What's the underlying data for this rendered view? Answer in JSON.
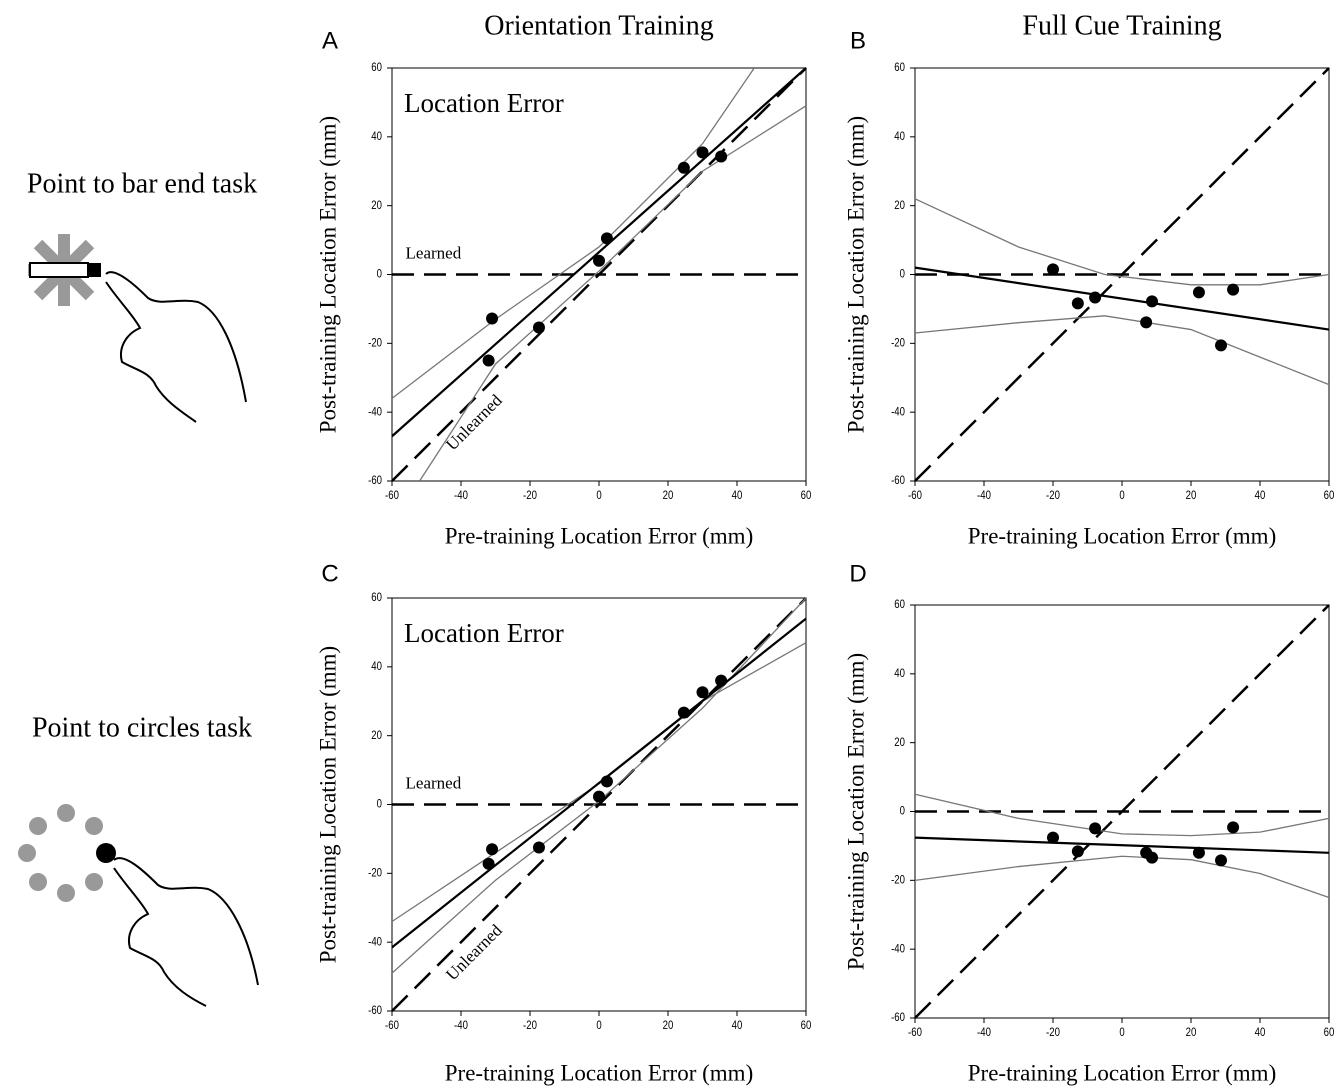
{
  "row_labels": [
    "Point to bar end task",
    "Point to circles task"
  ],
  "chart_data": [
    {
      "type": "scatter",
      "panel": "A",
      "title": "Orientation Training",
      "annotation": "Location Error",
      "xlabel": "Pre-training Location Error (mm)",
      "ylabel": "Post-training Location Error (mm)",
      "xlim": [
        -60,
        60
      ],
      "ylim": [
        -60,
        60
      ],
      "xticks": [
        -60,
        -40,
        -20,
        0,
        20,
        40,
        60
      ],
      "yticks": [
        -60,
        -40,
        -20,
        0,
        20,
        40,
        60
      ],
      "color": "#000000",
      "band_color": "#777777",
      "x": [
        -31,
        -32,
        -17.4,
        0,
        2.3,
        24.6,
        30,
        35.4
      ],
      "y": [
        -12.8,
        -25,
        -15.4,
        4,
        10.5,
        31,
        35.5,
        34.3
      ],
      "fit": {
        "x": [
          -60,
          60
        ],
        "y": [
          -47,
          60
        ]
      },
      "bands": [
        {
          "x": [
            -60,
            -30,
            0,
            30,
            45
          ],
          "y": [
            -36,
            -13,
            8,
            38,
            60
          ]
        },
        {
          "x": [
            -52,
            -30,
            0,
            30,
            60
          ],
          "y": [
            -60,
            -26,
            1,
            30,
            49
          ]
        }
      ],
      "reference_lines": [
        {
          "label": "Learned",
          "x": [
            -60,
            60
          ],
          "y": [
            0,
            0
          ]
        },
        {
          "label": "Unlearned",
          "x": [
            -60,
            60
          ],
          "y": [
            -60,
            60
          ]
        }
      ]
    },
    {
      "type": "scatter",
      "panel": "B",
      "title": "Full Cue Training",
      "xlabel": "Pre-training Location Error (mm)",
      "ylabel": "Post-training Location Error (mm)",
      "xlim": [
        -60,
        60
      ],
      "ylim": [
        -60,
        60
      ],
      "xticks": [
        -60,
        -40,
        -20,
        0,
        20,
        40,
        60
      ],
      "yticks": [
        -60,
        -40,
        -20,
        0,
        20,
        40,
        60
      ],
      "color": "#000000",
      "band_color": "#777777",
      "x": [
        -20,
        -12.8,
        -7.8,
        7,
        8.7,
        22.3,
        32.2,
        28.7
      ],
      "y": [
        1.5,
        -8.4,
        -6.7,
        -13.9,
        -7.8,
        -5.2,
        -4.4,
        -20.6
      ],
      "fit": {
        "x": [
          -60,
          60
        ],
        "y": [
          2,
          -16
        ]
      },
      "bands": [
        {
          "x": [
            -60,
            -30,
            -5,
            20,
            40,
            60
          ],
          "y": [
            22,
            8,
            0,
            -3,
            -3,
            0
          ]
        },
        {
          "x": [
            -60,
            -30,
            -5,
            20,
            40,
            60
          ],
          "y": [
            -17,
            -14,
            -12,
            -16,
            -24,
            -32
          ]
        }
      ],
      "reference_lines": [
        {
          "x": [
            -60,
            60
          ],
          "y": [
            0,
            0
          ]
        },
        {
          "x": [
            -60,
            60
          ],
          "y": [
            -60,
            60
          ]
        }
      ]
    },
    {
      "type": "scatter",
      "panel": "C",
      "annotation": "Location Error",
      "xlabel": "Pre-training Location Error (mm)",
      "ylabel": "Post-training Location Error (mm)",
      "xlim": [
        -60,
        60
      ],
      "ylim": [
        -60,
        60
      ],
      "xticks": [
        -60,
        -40,
        -20,
        0,
        20,
        40,
        60
      ],
      "yticks": [
        -60,
        -40,
        -20,
        0,
        20,
        40,
        60
      ],
      "color": "#000000",
      "band_color": "#777777",
      "x": [
        -31,
        -32,
        -17.4,
        0,
        2.3,
        24.6,
        30,
        35.4
      ],
      "y": [
        -13,
        -17.2,
        -12.5,
        2.3,
        6.7,
        26.7,
        32.6,
        36
      ],
      "fit": {
        "x": [
          -60,
          60
        ],
        "y": [
          -41.5,
          54
        ]
      },
      "bands": [
        {
          "x": [
            -60,
            -30,
            0,
            30,
            60
          ],
          "y": [
            -34,
            -14,
            6,
            30,
            47
          ]
        },
        {
          "x": [
            -60,
            -30,
            0,
            30,
            60
          ],
          "y": [
            -49,
            -22,
            1,
            28,
            60
          ]
        }
      ],
      "reference_lines": [
        {
          "label": "Learned",
          "x": [
            -60,
            60
          ],
          "y": [
            0,
            0
          ]
        },
        {
          "label": "Unlearned",
          "x": [
            -60,
            60
          ],
          "y": [
            -60,
            60
          ]
        }
      ]
    },
    {
      "type": "scatter",
      "panel": "D",
      "xlabel": "Pre-training Location Error (mm)",
      "ylabel": "Post-training Location Error (mm)",
      "xlim": [
        -60,
        60
      ],
      "ylim": [
        -60,
        60
      ],
      "xticks": [
        -60,
        -40,
        -20,
        0,
        20,
        40,
        60
      ],
      "yticks": [
        -60,
        -40,
        -20,
        0,
        20,
        40,
        60
      ],
      "color": "#000000",
      "band_color": "#777777",
      "x": [
        -20,
        -12.8,
        -7.8,
        7,
        8.7,
        22.3,
        28.7,
        32.2
      ],
      "y": [
        -7.6,
        -11.6,
        -4.9,
        -12,
        -13.4,
        -12,
        -14.2,
        -4.6
      ],
      "fit": {
        "x": [
          -60,
          60
        ],
        "y": [
          -7.6,
          -12
        ]
      },
      "bands": [
        {
          "x": [
            -60,
            -30,
            0,
            20,
            40,
            60
          ],
          "y": [
            5,
            -2,
            -6.5,
            -7,
            -6,
            -2
          ]
        },
        {
          "x": [
            -60,
            -30,
            0,
            20,
            40,
            60
          ],
          "y": [
            -20,
            -16,
            -13,
            -14,
            -18,
            -25
          ]
        }
      ],
      "reference_lines": [
        {
          "x": [
            -60,
            60
          ],
          "y": [
            0,
            0
          ]
        },
        {
          "x": [
            -60,
            60
          ],
          "y": [
            -60,
            60
          ]
        }
      ]
    }
  ]
}
